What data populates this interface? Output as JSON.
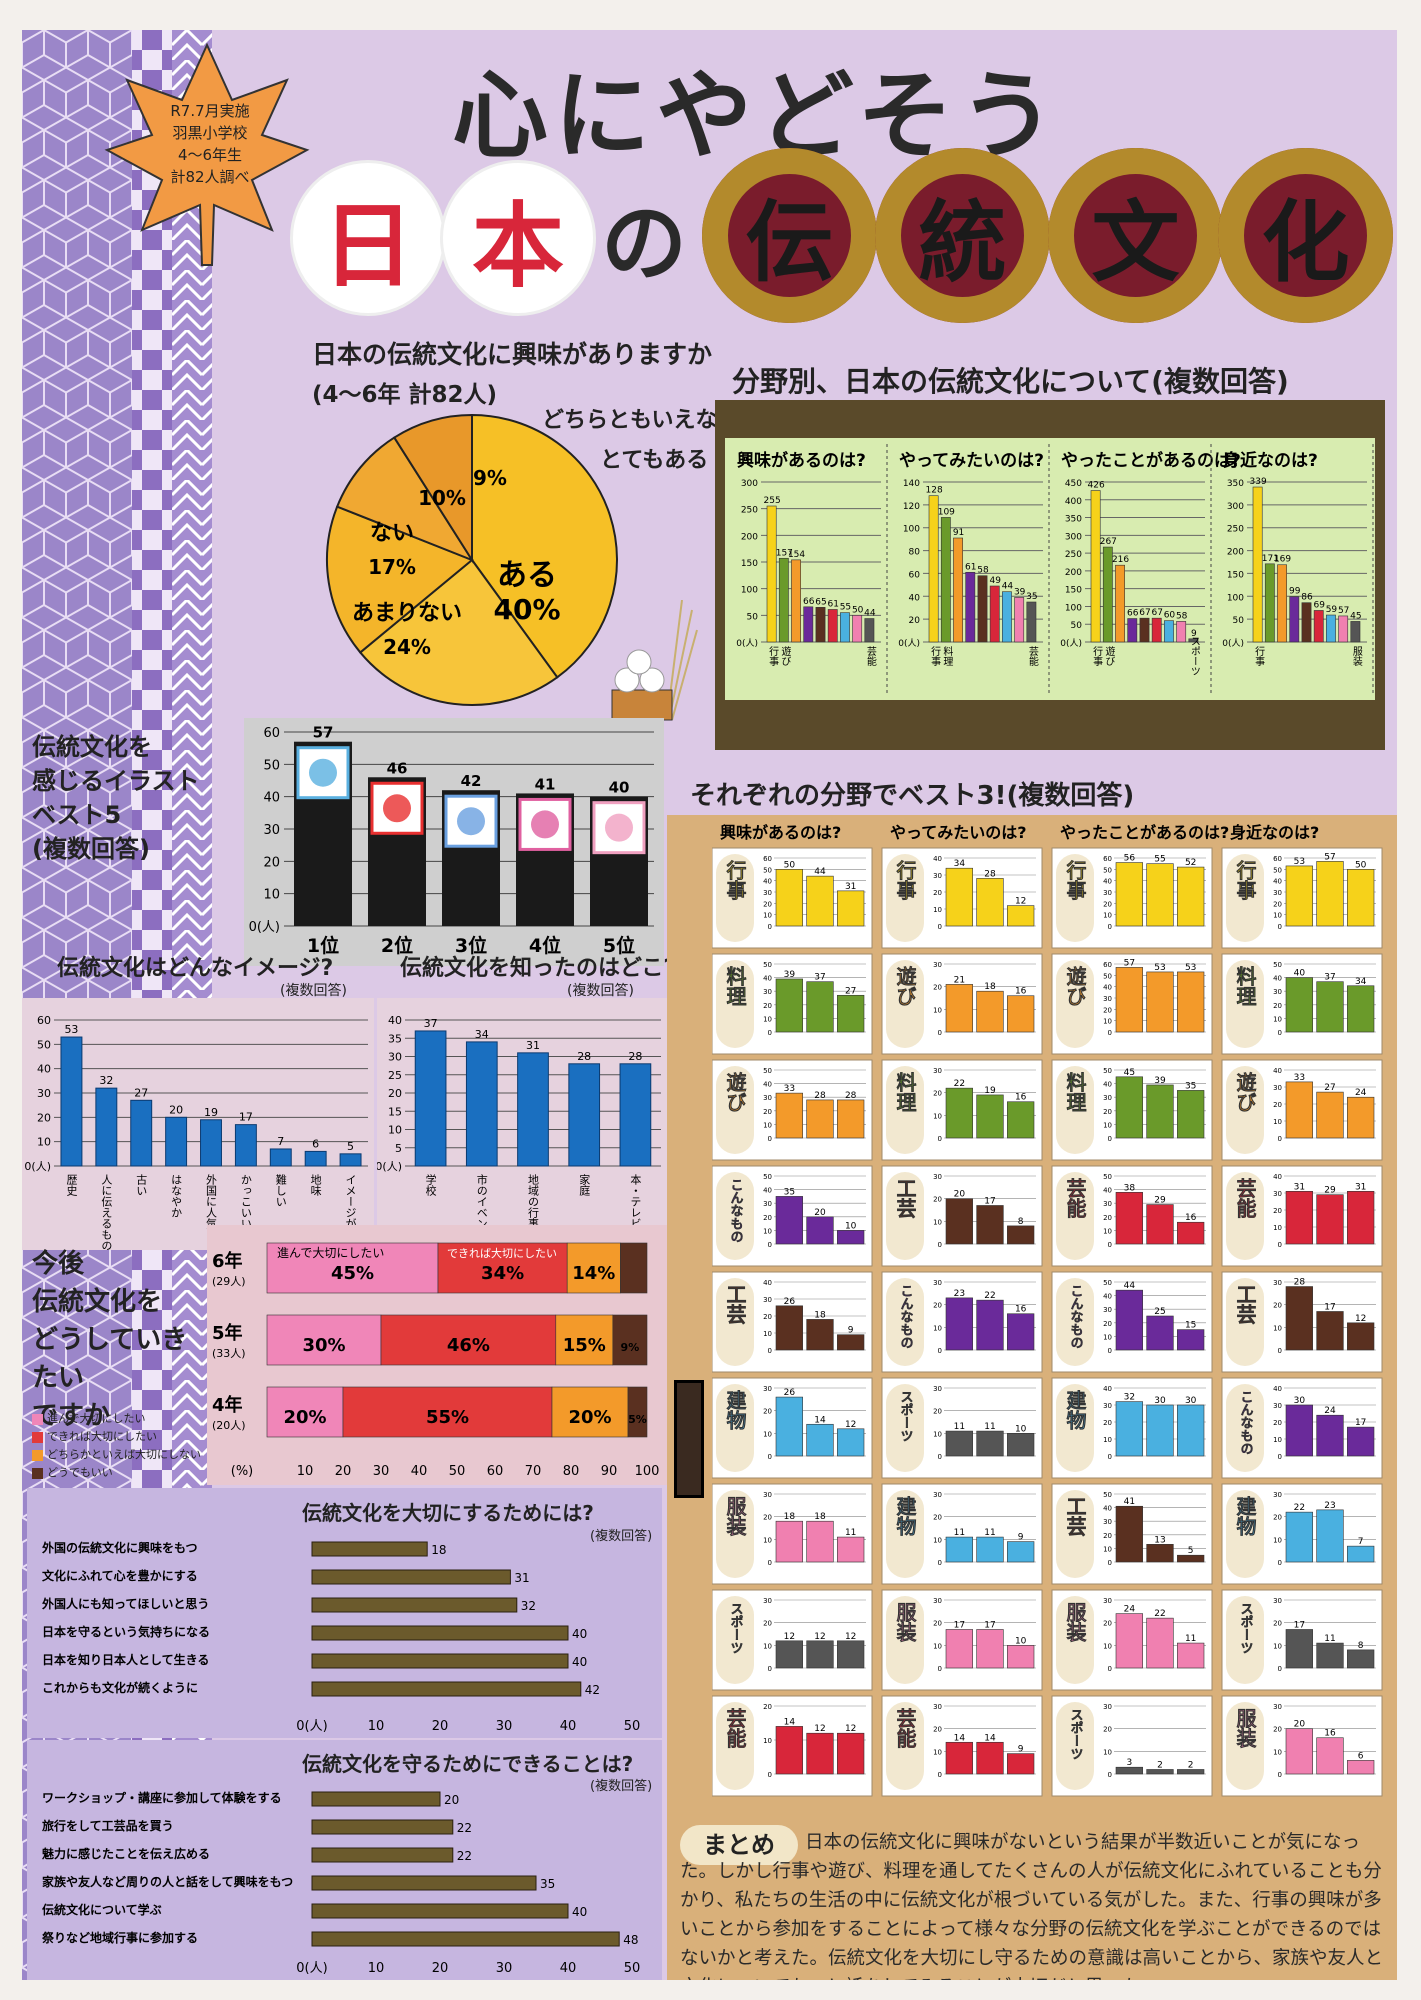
{
  "header": {
    "leaf_note": [
      "R7.7月実施",
      "羽黒小学校",
      "4〜6年生",
      "計82人調べ"
    ],
    "title_line1": "心にやどそう",
    "title_chars": [
      "日",
      "本",
      "の",
      "伝",
      "統",
      "文",
      "化"
    ]
  },
  "colors": {
    "yellow": "#f6d21a",
    "green": "#6a9a2a",
    "orange": "#f39a2a",
    "purple": "#6a2a9a",
    "brown": "#5a3020",
    "red": "#d8263a",
    "sky": "#4ab0e0",
    "pink": "#f080b0",
    "gray": "#555555",
    "blue": "#1a6fc0",
    "olive": "#6b5a2c"
  },
  "pie": {
    "title": "日本の伝統文化に興味がありますか",
    "subtitle": "(4〜6年 計82人)",
    "slices": [
      {
        "label": "ある",
        "value": 40,
        "text": "40%"
      },
      {
        "label": "あまりない",
        "value": 24,
        "text": "24%"
      },
      {
        "label": "ない",
        "value": 17,
        "text": "17%"
      },
      {
        "label": "",
        "value": 10,
        "text": "10%"
      },
      {
        "label": "",
        "value": 9,
        "text": "9%"
      }
    ],
    "callout_dochira": "どちらともいえない",
    "callout_totemo": "とてもある"
  },
  "field_chart": {
    "title": "分野別、日本の伝統文化について(複数回答)",
    "panels": [
      {
        "title": "興味があるのは?",
        "ymax": 300,
        "ticks": [
          "300",
          "250",
          "200",
          "150",
          "100",
          "50",
          "0(人)"
        ],
        "values": [
          255,
          157,
          154,
          66,
          65,
          61,
          55,
          50,
          44
        ],
        "labels": [
          "行事",
          "遊び",
          "",
          "",
          "",
          "",
          "",
          "",
          "芸能"
        ]
      },
      {
        "title": "やってみたいのは?",
        "ymax": 140,
        "ticks": [
          "140",
          "120",
          "100",
          "80",
          "60",
          "40",
          "20",
          "0(人)"
        ],
        "values": [
          128,
          109,
          91,
          61,
          58,
          49,
          44,
          39,
          35
        ],
        "labels": [
          "行事",
          "料理",
          "",
          "",
          "",
          "",
          "",
          "",
          "芸能"
        ]
      },
      {
        "title": "やったことがあるのは?",
        "ymax": 450,
        "ticks": [
          "450",
          "400",
          "350",
          "300",
          "250",
          "200",
          "150",
          "100",
          "50",
          "0(人)"
        ],
        "values": [
          426,
          267,
          216,
          66,
          67,
          67,
          60,
          58,
          9
        ],
        "labels": [
          "行事",
          "遊び",
          "",
          "",
          "",
          "",
          "",
          "",
          "スポーツ"
        ]
      },
      {
        "title": "身近なのは?",
        "ymax": 350,
        "ticks": [
          "350",
          "300",
          "250",
          "200",
          "150",
          "100",
          "50",
          "0(人)"
        ],
        "values": [
          339,
          171,
          169,
          99,
          86,
          69,
          59,
          57,
          45
        ],
        "labels": [
          "行事",
          "",
          "",
          "",
          "",
          "",
          "",
          "",
          "服装"
        ]
      }
    ]
  },
  "illust": {
    "title": [
      "伝統文化を",
      "感じるイラスト",
      "ベスト5",
      "(複数回答)"
    ],
    "ticks": [
      "60",
      "50",
      "40",
      "30",
      "20",
      "10",
      "0(人)"
    ],
    "values": [
      57,
      46,
      42,
      41,
      40
    ],
    "ranks": [
      "1位",
      "2位",
      "3位",
      "4位",
      "5位"
    ]
  },
  "image": {
    "title": "伝統文化はどんなイメージ?",
    "note": "(複数回答)",
    "ticks": [
      "60",
      "50",
      "40",
      "30",
      "20",
      "10",
      "0(人)"
    ],
    "values": [
      53,
      32,
      27,
      20,
      19,
      17,
      7,
      6,
      5
    ],
    "labels": [
      "歴史",
      "人に伝えるもの",
      "古い",
      "はなやか",
      "外国に人気",
      "かっこいい",
      "難しい",
      "地味",
      "イメージがない"
    ]
  },
  "know": {
    "title": "伝統文化を知ったのはどこ?",
    "note": "(複数回答)",
    "ticks": [
      "40",
      "35",
      "30",
      "25",
      "20",
      "15",
      "10",
      "5",
      "0(人)"
    ],
    "values": [
      37,
      34,
      31,
      28,
      28
    ],
    "labels": [
      "学校",
      "市のイベント",
      "地域の行事",
      "家庭",
      "本・テレビ"
    ]
  },
  "future": {
    "title": [
      "今後",
      "伝統文化を",
      "どうしていきたい",
      "ですか"
    ],
    "rows": [
      {
        "grade": "6年",
        "n": "(29人)",
        "values": [
          45,
          34,
          14,
          7
        ],
        "texts": [
          "45%",
          "34%",
          "14%",
          ""
        ]
      },
      {
        "grade": "5年",
        "n": "(33人)",
        "values": [
          30,
          46,
          15,
          9
        ],
        "texts": [
          "30%",
          "46%",
          "15%",
          "9%"
        ]
      },
      {
        "grade": "4年",
        "n": "(20人)",
        "values": [
          20,
          55,
          20,
          5
        ],
        "texts": [
          "20%",
          "55%",
          "20%",
          "5%"
        ]
      }
    ],
    "legend": [
      "進んで大切にしたい",
      "できれば大切にしたい",
      "どちらかといえば大切にしない",
      "どうでもいい"
    ],
    "ticks": [
      "(%)",
      "10",
      "20",
      "30",
      "40",
      "50",
      "60",
      "70",
      "80",
      "90",
      "100"
    ]
  },
  "important": {
    "title": "伝統文化を大切にするためには?",
    "note": "(複数回答)",
    "labels": [
      "外国の伝統文化に興味をもつ",
      "文化にふれて心を豊かにする",
      "外国人にも知ってほしいと思う",
      "日本を守るという気持ちになる",
      "日本を知り日本人として生きる",
      "これからも文化が続くように"
    ],
    "values": [
      18,
      31,
      32,
      40,
      40,
      42
    ],
    "ticks": [
      "0(人)",
      "10",
      "20",
      "30",
      "40",
      "50"
    ]
  },
  "protect": {
    "title": "伝統文化を守るためにできることは?",
    "note": "(複数回答)",
    "labels": [
      "ワークショップ・講座に参加して体験をする",
      "旅行をして工芸品を買う",
      "魅力に感じたことを伝え広める",
      "家族や友人など周りの人と話をして興味をもつ",
      "伝統文化について学ぶ",
      "祭りなど地域行事に参加する"
    ],
    "values": [
      20,
      22,
      22,
      35,
      40,
      48
    ],
    "ticks": [
      "0(人)",
      "10",
      "20",
      "30",
      "40",
      "50"
    ]
  },
  "best3": {
    "title": "それぞれの分野でベスト3!(複数回答)",
    "columns": [
      "興味があるのは?",
      "やってみたいのは?",
      "やったことがあるのは?",
      "身近なのは?"
    ],
    "grid": [
      [
        {
          "cat": "行事",
          "color": "yellow",
          "max": 60,
          "values": [
            50,
            44,
            31
          ]
        },
        {
          "cat": "料理",
          "color": "green",
          "max": 50,
          "values": [
            39,
            37,
            27
          ]
        },
        {
          "cat": "遊び",
          "color": "orange",
          "max": 50,
          "values": [
            33,
            28,
            28
          ]
        },
        {
          "cat": "こんなもの",
          "color": "purple",
          "max": 50,
          "values": [
            35,
            20,
            10
          ]
        },
        {
          "cat": "工芸",
          "color": "brown",
          "max": 40,
          "values": [
            26,
            18,
            9
          ]
        },
        {
          "cat": "建物",
          "color": "sky",
          "max": 30,
          "values": [
            26,
            14,
            12
          ]
        },
        {
          "cat": "服装",
          "color": "pink",
          "max": 30,
          "values": [
            18,
            18,
            11
          ]
        },
        {
          "cat": "スポーツ",
          "color": "gray",
          "max": 30,
          "values": [
            12,
            12,
            12
          ]
        },
        {
          "cat": "芸能",
          "color": "red",
          "max": 20,
          "values": [
            14,
            12,
            12
          ]
        }
      ],
      [
        {
          "cat": "行事",
          "color": "yellow",
          "max": 40,
          "values": [
            34,
            28,
            12
          ]
        },
        {
          "cat": "遊び",
          "color": "orange",
          "max": 30,
          "values": [
            21,
            18,
            16
          ]
        },
        {
          "cat": "料理",
          "color": "green",
          "max": 30,
          "values": [
            22,
            19,
            16
          ]
        },
        {
          "cat": "工芸",
          "color": "brown",
          "max": 30,
          "values": [
            20,
            17,
            8
          ]
        },
        {
          "cat": "こんなもの",
          "color": "purple",
          "max": 30,
          "values": [
            23,
            22,
            16
          ]
        },
        {
          "cat": "スポーツ",
          "color": "gray",
          "max": 30,
          "values": [
            11,
            11,
            10
          ]
        },
        {
          "cat": "建物",
          "color": "sky",
          "max": 30,
          "values": [
            11,
            11,
            9
          ]
        },
        {
          "cat": "服装",
          "color": "pink",
          "max": 30,
          "values": [
            17,
            17,
            10
          ]
        },
        {
          "cat": "芸能",
          "color": "red",
          "max": 30,
          "values": [
            14,
            14,
            9
          ]
        }
      ],
      [
        {
          "cat": "行事",
          "color": "yellow",
          "max": 60,
          "values": [
            56,
            55,
            52
          ]
        },
        {
          "cat": "遊び",
          "color": "orange",
          "max": 60,
          "values": [
            57,
            53,
            53
          ]
        },
        {
          "cat": "料理",
          "color": "green",
          "max": 50,
          "values": [
            45,
            39,
            35
          ]
        },
        {
          "cat": "芸能",
          "color": "red",
          "max": 50,
          "values": [
            38,
            29,
            16
          ]
        },
        {
          "cat": "こんなもの",
          "color": "purple",
          "max": 50,
          "values": [
            44,
            25,
            15
          ]
        },
        {
          "cat": "建物",
          "color": "sky",
          "max": 40,
          "values": [
            32,
            30,
            30
          ]
        },
        {
          "cat": "工芸",
          "color": "brown",
          "max": 50,
          "values": [
            41,
            13,
            5
          ]
        },
        {
          "cat": "服装",
          "color": "pink",
          "max": 30,
          "values": [
            24,
            22,
            11
          ]
        },
        {
          "cat": "スポーツ",
          "color": "gray",
          "max": 30,
          "values": [
            3,
            2,
            2
          ]
        }
      ],
      [
        {
          "cat": "行事",
          "color": "yellow",
          "max": 60,
          "values": [
            53,
            57,
            50
          ]
        },
        {
          "cat": "料理",
          "color": "green",
          "max": 50,
          "values": [
            40,
            37,
            34
          ]
        },
        {
          "cat": "遊び",
          "color": "orange",
          "max": 40,
          "values": [
            33,
            27,
            24
          ]
        },
        {
          "cat": "芸能",
          "color": "red",
          "max": 40,
          "values": [
            31,
            29,
            31
          ]
        },
        {
          "cat": "工芸",
          "color": "brown",
          "max": 30,
          "values": [
            28,
            17,
            12
          ]
        },
        {
          "cat": "こんなもの",
          "color": "purple",
          "max": 40,
          "values": [
            30,
            24,
            17
          ]
        },
        {
          "cat": "建物",
          "color": "sky",
          "max": 30,
          "values": [
            22,
            23,
            7
          ]
        },
        {
          "cat": "スポーツ",
          "color": "gray",
          "max": 30,
          "values": [
            17,
            11,
            8
          ]
        },
        {
          "cat": "服装",
          "color": "pink",
          "max": 30,
          "values": [
            20,
            16,
            6
          ]
        }
      ]
    ]
  },
  "summary": {
    "label": "まとめ",
    "text": "日本の伝統文化に興味がないという結果が半数近いことが気になった。しかし行事や遊び、料理を通してたくさんの人が伝統文化にふれていることも分かり、私たちの生活の中に伝統文化が根づいている気がした。また、行事の興味が多いことから参加をすることによって様々な分野の伝統文化を学ぶことができるのではないかと考えた。伝統文化を大切にし守るための意識は高いことから、家族や友人と文化についてもっと話をしてみることが大切だと思った。"
  }
}
